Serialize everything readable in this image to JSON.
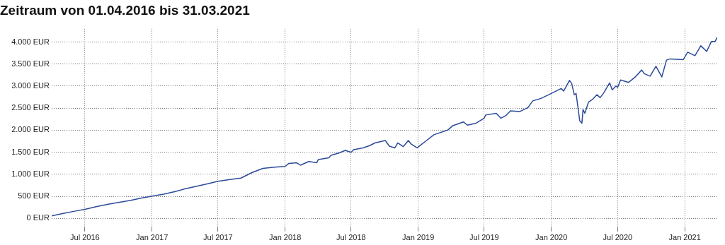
{
  "chart_data": {
    "type": "line",
    "title": "Zeitraum von 01.04.2016 bis 31.03.2021",
    "xlim": [
      "2016-04-01",
      "2021-03-31"
    ],
    "xticks": [
      {
        "value": "2016-07-01",
        "label": "Jul 2016"
      },
      {
        "value": "2017-01-01",
        "label": "Jan 2017"
      },
      {
        "value": "2017-07-01",
        "label": "Jul 2017"
      },
      {
        "value": "2018-01-01",
        "label": "Jan 2018"
      },
      {
        "value": "2018-07-01",
        "label": "Jul 2018"
      },
      {
        "value": "2019-01-01",
        "label": "Jan 2019"
      },
      {
        "value": "2019-07-01",
        "label": "Jul 2019"
      },
      {
        "value": "2020-01-01",
        "label": "Jan 2020"
      },
      {
        "value": "2020-07-01",
        "label": "Jul 2020"
      },
      {
        "value": "2021-01-01",
        "label": "Jan 2021"
      }
    ],
    "ylim": [
      -200,
      4300
    ],
    "yticks": [
      {
        "value": 0,
        "label": "0 EUR"
      },
      {
        "value": 500,
        "label": "500 EUR"
      },
      {
        "value": 1000,
        "label": "1.000 EUR"
      },
      {
        "value": 1500,
        "label": "1.500 EUR"
      },
      {
        "value": 2000,
        "label": "2.000 EUR"
      },
      {
        "value": 2500,
        "label": "2.500 EUR"
      },
      {
        "value": 3000,
        "label": "3.000 EUR"
      },
      {
        "value": 3500,
        "label": "3.500 EUR"
      },
      {
        "value": 4000,
        "label": "4.000 EUR"
      }
    ],
    "grid": true,
    "legend": false,
    "marker": "none",
    "line_style": "solid",
    "series": [
      {
        "color": "#2b4a9a",
        "x": [
          "2016-04-01",
          "2016-05-03",
          "2016-06-03",
          "2016-07-03",
          "2016-08-03",
          "2016-09-03",
          "2016-10-04",
          "2016-11-04",
          "2016-12-03",
          "2017-01-02",
          "2017-02-02",
          "2017-03-04",
          "2017-04-03",
          "2017-05-04",
          "2017-06-03",
          "2017-07-01",
          "2017-08-03",
          "2017-09-02",
          "2017-10-02",
          "2017-11-01",
          "2017-12-03",
          "2018-01-01",
          "2018-01-11",
          "2018-02-02",
          "2018-02-12",
          "2018-03-07",
          "2018-03-29",
          "2018-04-02",
          "2018-05-01",
          "2018-05-07",
          "2018-05-30",
          "2018-06-15",
          "2018-07-01",
          "2018-07-08",
          "2018-08-03",
          "2018-08-22",
          "2018-09-04",
          "2018-10-03",
          "2018-10-14",
          "2018-10-29",
          "2018-11-06",
          "2018-11-21",
          "2018-12-05",
          "2018-12-13",
          "2018-12-29",
          "2019-01-24",
          "2019-02-13",
          "2019-03-24",
          "2019-04-06",
          "2019-05-05",
          "2019-05-16",
          "2019-06-09",
          "2019-07-01",
          "2019-07-05",
          "2019-08-03",
          "2019-08-16",
          "2019-08-29",
          "2019-09-11",
          "2019-10-07",
          "2019-10-29",
          "2019-11-11",
          "2019-12-04",
          "2020-01-01",
          "2020-01-28",
          "2020-02-04",
          "2020-02-20",
          "2020-02-26",
          "2020-03-04",
          "2020-03-09",
          "2020-03-14",
          "2020-03-19",
          "2020-03-25",
          "2020-03-28",
          "2020-04-02",
          "2020-04-12",
          "2020-04-22",
          "2020-05-05",
          "2020-05-14",
          "2020-05-24",
          "2020-06-09",
          "2020-06-16",
          "2020-06-26",
          "2020-07-01",
          "2020-07-09",
          "2020-07-31",
          "2020-08-17",
          "2020-09-05",
          "2020-09-12",
          "2020-09-28",
          "2020-10-14",
          "2020-10-30",
          "2020-11-12",
          "2020-11-22",
          "2020-12-28",
          "2021-01-09",
          "2021-01-29",
          "2021-02-14",
          "2021-03-02",
          "2021-03-15",
          "2021-03-25",
          "2021-03-31"
        ],
        "values": [
          56,
          112,
          163,
          208,
          269,
          320,
          365,
          410,
          460,
          505,
          550,
          606,
          673,
          729,
          785,
          841,
          880,
          914,
          1038,
          1133,
          1161,
          1178,
          1245,
          1262,
          1206,
          1290,
          1262,
          1335,
          1374,
          1430,
          1487,
          1543,
          1498,
          1560,
          1599,
          1655,
          1711,
          1767,
          1638,
          1599,
          1711,
          1627,
          1767,
          1683,
          1599,
          1767,
          1896,
          2008,
          2104,
          2188,
          2115,
          2160,
          2272,
          2345,
          2384,
          2272,
          2328,
          2440,
          2424,
          2513,
          2665,
          2721,
          2833,
          2945,
          2889,
          3130,
          3057,
          2805,
          2833,
          2525,
          2216,
          2160,
          2468,
          2384,
          2637,
          2693,
          2805,
          2738,
          2850,
          3074,
          2917,
          3001,
          2973,
          3141,
          3085,
          3197,
          3366,
          3282,
          3226,
          3450,
          3209,
          3590,
          3618,
          3601,
          3770,
          3691,
          3915,
          3787,
          4011,
          4011,
          4106
        ]
      }
    ]
  }
}
